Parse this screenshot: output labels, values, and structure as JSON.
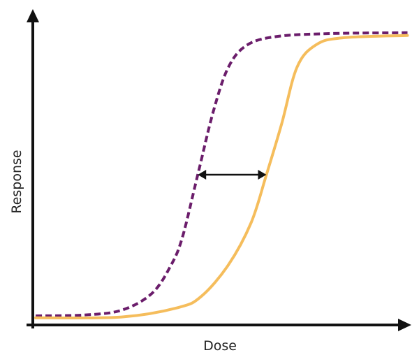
{
  "chart_data": {
    "type": "line",
    "title": "",
    "xlabel": "Dose",
    "ylabel": "Response",
    "x_ticks": [],
    "y_ticks": [],
    "grid": false,
    "legend": "none",
    "xlim": [
      0,
      10
    ],
    "ylim": [
      0,
      1
    ],
    "series": [
      {
        "style": "dashed",
        "color": "#6b1d6b",
        "points": [
          [
            0.25,
            0.0
          ],
          [
            1.5,
            0.003
          ],
          [
            2.5,
            0.02
          ],
          [
            3.3,
            0.08
          ],
          [
            3.8,
            0.18
          ],
          [
            4.1,
            0.28
          ],
          [
            4.5,
            0.5
          ],
          [
            4.9,
            0.72
          ],
          [
            5.3,
            0.88
          ],
          [
            5.8,
            0.96
          ],
          [
            6.6,
            0.99
          ],
          [
            8.0,
            1.0
          ],
          [
            10.0,
            1.003
          ]
        ]
      },
      {
        "style": "solid",
        "color": "#f5bd5c",
        "points": [
          [
            0.25,
            -0.007
          ],
          [
            2.5,
            -0.004
          ],
          [
            4.0,
            0.03
          ],
          [
            4.6,
            0.07
          ],
          [
            5.3,
            0.18
          ],
          [
            5.9,
            0.33
          ],
          [
            6.3,
            0.5
          ],
          [
            6.7,
            0.68
          ],
          [
            7.1,
            0.88
          ],
          [
            7.6,
            0.96
          ],
          [
            8.3,
            0.985
          ],
          [
            10.0,
            0.993
          ]
        ]
      }
    ],
    "annotations": [
      {
        "type": "double-arrow",
        "from": [
          4.5,
          0.5
        ],
        "to": [
          6.3,
          0.5
        ],
        "color": "#111111"
      }
    ]
  }
}
